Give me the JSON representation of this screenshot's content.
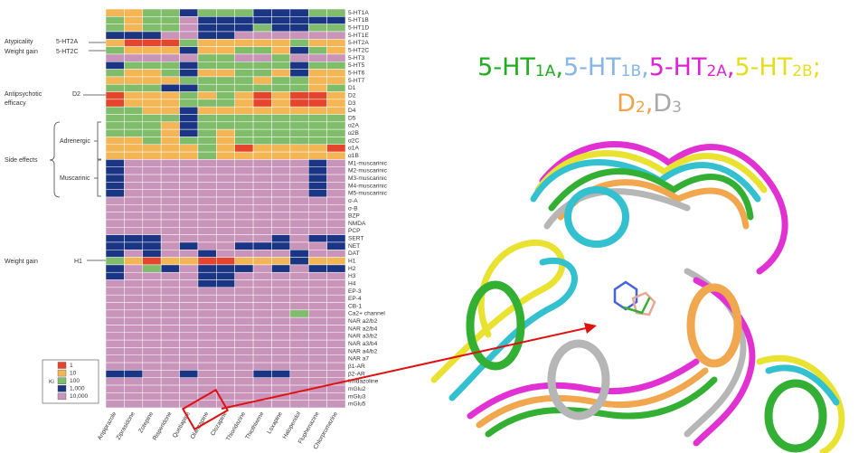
{
  "chart_data": {
    "type": "heatmap",
    "columns": [
      "Aripiprazole",
      "Ziprasidone",
      "Zotepine",
      "Risperidone",
      "Quetiapine",
      "Olanzapine",
      "Clozapine",
      "Thioridazine",
      "Thiothixene",
      "Loxapine",
      "Haloperidol",
      "Fluphenazine",
      "Chlorpromazine"
    ],
    "rows": [
      "5-HT1A",
      "5-HT1B",
      "5-HT1D",
      "5-HT1E",
      "5-HT2A",
      "5-HT2C",
      "5-HT3",
      "5-HT5",
      "5-HT6",
      "5-HT7",
      "D1",
      "D2",
      "D3",
      "D4",
      "D5",
      "α2A",
      "α2B",
      "α2C",
      "α1A",
      "α1B",
      "M1-muscarinic",
      "M2-muscarinic",
      "M3-muscarinic",
      "M4-muscarinic",
      "M5-muscarinic",
      "σ-A",
      "σ-B",
      "BZP",
      "NMDA",
      "PCP",
      "SERT",
      "NET",
      "DAT",
      "H1",
      "H2",
      "H3",
      "H4",
      "EP-3",
      "EP-4",
      "CB-1",
      "Ca2+ channel",
      "NAR a2/b2",
      "NAR a2/b4",
      "NAR a3/b2",
      "NAR a3/b4",
      "NAR a4/b2",
      "NAR a7",
      "β1-AR",
      "β2-AR",
      "Imidazoline",
      "mGlu2",
      "mGlu3",
      "mGlu5"
    ],
    "values": [
      [
        10,
        10,
        100,
        100,
        1000,
        100,
        100,
        100,
        1000,
        1000,
        1000,
        100,
        100
      ],
      [
        100,
        10,
        100,
        100,
        10000,
        1000,
        1000,
        1000,
        1000,
        1000,
        1000,
        1000,
        1000
      ],
      [
        100,
        10,
        100,
        100,
        10000,
        1000,
        1000,
        1000,
        100,
        1000,
        1000,
        100,
        100
      ],
      [
        1000,
        1000,
        1000,
        10000,
        10000,
        1000,
        1000,
        10000,
        10000,
        10000,
        10000,
        10000,
        10000
      ],
      [
        10,
        1,
        1,
        1,
        100,
        10,
        10,
        10,
        10,
        10,
        100,
        10,
        10
      ],
      [
        100,
        10,
        10,
        10,
        1000,
        10,
        10,
        100,
        100,
        10,
        1000,
        100,
        10
      ],
      [
        10000,
        10000,
        10000,
        10000,
        10000,
        100,
        100,
        10000,
        10000,
        100,
        10000,
        10000,
        10000
      ],
      [
        1000,
        100,
        100,
        100,
        1000,
        100,
        100,
        100,
        100,
        100,
        1000,
        100,
        100
      ],
      [
        100,
        10,
        10,
        100,
        1000,
        10,
        10,
        100,
        100,
        10,
        1000,
        10,
        10
      ],
      [
        10,
        10,
        10,
        10,
        100,
        100,
        100,
        100,
        10,
        100,
        100,
        10,
        10
      ],
      [
        100,
        100,
        100,
        1000,
        1000,
        100,
        100,
        100,
        100,
        100,
        100,
        10,
        100
      ],
      [
        1,
        10,
        10,
        10,
        100,
        10,
        100,
        10,
        1,
        10,
        1,
        1,
        10
      ],
      [
        1,
        10,
        10,
        10,
        100,
        100,
        100,
        10,
        1,
        10,
        1,
        1,
        10
      ],
      [
        100,
        100,
        10,
        10,
        1000,
        10,
        10,
        10,
        10,
        10,
        10,
        10,
        10
      ],
      [
        100,
        100,
        100,
        100,
        1000,
        100,
        100,
        100,
        100,
        100,
        100,
        100,
        100
      ],
      [
        100,
        100,
        100,
        10,
        1000,
        100,
        100,
        100,
        100,
        100,
        100,
        100,
        100
      ],
      [
        100,
        100,
        100,
        10,
        1000,
        100,
        10,
        100,
        100,
        100,
        100,
        100,
        100
      ],
      [
        10,
        10,
        100,
        10,
        100,
        100,
        10,
        100,
        100,
        100,
        100,
        100,
        100
      ],
      [
        10,
        10,
        10,
        10,
        10,
        100,
        10,
        1,
        10,
        10,
        10,
        10,
        1
      ],
      [
        10,
        10,
        10,
        10,
        10,
        100,
        10,
        10,
        10,
        10,
        10,
        10,
        10
      ],
      [
        1000,
        10000,
        10000,
        10000,
        10000,
        10000,
        10000,
        10000,
        10000,
        10000,
        10000,
        1000,
        10000
      ],
      [
        1000,
        10000,
        10000,
        10000,
        10000,
        10000,
        10000,
        10000,
        10000,
        10000,
        10000,
        1000,
        10000
      ],
      [
        1000,
        10000,
        10000,
        10000,
        10000,
        10000,
        10000,
        10000,
        10000,
        10000,
        10000,
        1000,
        10000
      ],
      [
        1000,
        10000,
        10000,
        10000,
        10000,
        10000,
        10000,
        10000,
        10000,
        10000,
        10000,
        1000,
        10000
      ],
      [
        1000,
        10000,
        10000,
        10000,
        10000,
        10000,
        10000,
        10000,
        10000,
        10000,
        10000,
        1000,
        10000
      ],
      [
        10000,
        10000,
        10000,
        10000,
        10000,
        10000,
        10000,
        10000,
        10000,
        10000,
        10000,
        10000,
        10000
      ],
      [
        10000,
        10000,
        10000,
        10000,
        10000,
        10000,
        10000,
        10000,
        10000,
        10000,
        10000,
        10000,
        10000
      ],
      [
        10000,
        10000,
        10000,
        10000,
        10000,
        10000,
        10000,
        10000,
        10000,
        10000,
        10000,
        10000,
        10000
      ],
      [
        10000,
        10000,
        10000,
        10000,
        10000,
        10000,
        10000,
        10000,
        10000,
        10000,
        10000,
        10000,
        10000
      ],
      [
        10000,
        10000,
        10000,
        10000,
        10000,
        10000,
        10000,
        10000,
        10000,
        10000,
        10000,
        10000,
        10000
      ],
      [
        1000,
        1000,
        1000,
        10000,
        10000,
        10000,
        10000,
        10000,
        10000,
        1000,
        10000,
        1000,
        1000
      ],
      [
        1000,
        1000,
        1000,
        10000,
        1000,
        10000,
        10000,
        1000,
        1000,
        1000,
        10000,
        10000,
        1000
      ],
      [
        1000,
        10000,
        1000,
        10000,
        10000,
        1000,
        10000,
        10000,
        10000,
        10000,
        1000,
        10000,
        10000
      ],
      [
        100,
        10,
        1,
        10,
        10,
        1,
        1,
        10,
        10,
        10,
        1000,
        10,
        10
      ],
      [
        1000,
        10000,
        100,
        1000,
        10000,
        1000,
        1000,
        1000,
        10000,
        1000,
        10000,
        1000,
        1000
      ],
      [
        1000,
        10000,
        10000,
        10000,
        10000,
        1000,
        1000,
        10000,
        10000,
        10000,
        10000,
        10000,
        10000
      ],
      [
        10000,
        10000,
        10000,
        10000,
        10000,
        1000,
        1000,
        10000,
        10000,
        10000,
        10000,
        10000,
        10000
      ],
      [
        10000,
        10000,
        10000,
        10000,
        10000,
        10000,
        10000,
        10000,
        10000,
        10000,
        10000,
        10000,
        10000
      ],
      [
        10000,
        10000,
        10000,
        10000,
        10000,
        10000,
        10000,
        10000,
        10000,
        10000,
        10000,
        10000,
        10000
      ],
      [
        10000,
        10000,
        10000,
        10000,
        10000,
        10000,
        10000,
        10000,
        10000,
        10000,
        10000,
        10000,
        10000
      ],
      [
        10000,
        10000,
        10000,
        10000,
        10000,
        10000,
        10000,
        10000,
        10000,
        10000,
        100,
        10000,
        10000
      ],
      [
        10000,
        10000,
        10000,
        10000,
        10000,
        10000,
        10000,
        10000,
        10000,
        10000,
        10000,
        10000,
        10000
      ],
      [
        10000,
        10000,
        10000,
        10000,
        10000,
        10000,
        10000,
        10000,
        10000,
        10000,
        10000,
        10000,
        10000
      ],
      [
        10000,
        10000,
        10000,
        10000,
        10000,
        10000,
        10000,
        10000,
        10000,
        10000,
        10000,
        10000,
        10000
      ],
      [
        10000,
        10000,
        10000,
        10000,
        10000,
        10000,
        10000,
        10000,
        10000,
        10000,
        10000,
        10000,
        10000
      ],
      [
        10000,
        10000,
        10000,
        10000,
        10000,
        10000,
        10000,
        10000,
        10000,
        10000,
        10000,
        10000,
        10000
      ],
      [
        10000,
        10000,
        10000,
        10000,
        10000,
        10000,
        10000,
        10000,
        10000,
        10000,
        10000,
        10000,
        10000
      ],
      [
        10000,
        10000,
        10000,
        10000,
        10000,
        10000,
        10000,
        10000,
        10000,
        10000,
        10000,
        10000,
        10000
      ],
      [
        1000,
        1000,
        10000,
        10000,
        1000,
        10000,
        10000,
        10000,
        1000,
        1000,
        10000,
        10000,
        10000
      ],
      [
        10000,
        10000,
        10000,
        10000,
        10000,
        10000,
        10000,
        10000,
        10000,
        10000,
        10000,
        10000,
        10000
      ],
      [
        10000,
        10000,
        10000,
        10000,
        10000,
        10000,
        10000,
        10000,
        10000,
        10000,
        10000,
        10000,
        10000
      ],
      [
        10000,
        10000,
        10000,
        10000,
        10000,
        10000,
        10000,
        10000,
        10000,
        10000,
        10000,
        10000,
        10000
      ],
      [
        10000,
        10000,
        10000,
        10000,
        10000,
        10000,
        10000,
        10000,
        10000,
        10000,
        10000,
        10000,
        10000
      ]
    ],
    "legend": {
      "title": "Ki",
      "levels": [
        1,
        10,
        100,
        {
          "value": 1000,
          "label": "1,000"
        },
        {
          "value": 10000,
          "label": "10,000"
        }
      ],
      "colors": [
        "#e5452c",
        "#f4b654",
        "#7fbd6b",
        "#1b3585",
        "#c994b9"
      ]
    }
  },
  "annotations": {
    "atypicality": {
      "label": "Atypicality",
      "receptor": "5-HT2A"
    },
    "weight_gain_2c": {
      "label": "Weight gain",
      "receptor": "5-HT2C"
    },
    "antipsychotic": {
      "label": "Antipsychotic",
      "label2": "efficacy",
      "receptor": "D2"
    },
    "side_effects": "Side effects",
    "adrenergic": "Adrenergic",
    "muscarinic": "Muscarinic",
    "weight_gain_h1": {
      "label": "Weight gain",
      "receptor": "H1"
    }
  },
  "structure_title": {
    "lines": [
      [
        {
          "text": "5-HT",
          "sub": "1A",
          "after": ",",
          "color": "#1fae1f"
        },
        {
          "text": "5-HT",
          "sub": "1B",
          "after": ",",
          "color": "#86b6e4"
        },
        {
          "text": "5-HT",
          "sub": "2A",
          "after": ",",
          "color": "#e021d2"
        },
        {
          "text": "5-HT",
          "sub": "2B",
          "after": ";",
          "color": "#e4de1e"
        }
      ],
      [
        {
          "text": "D",
          "sub": "2",
          "after": ",",
          "color": "#f0a244"
        },
        {
          "text": "D",
          "sub": "3",
          "color": "#a9a9a9"
        }
      ]
    ]
  }
}
